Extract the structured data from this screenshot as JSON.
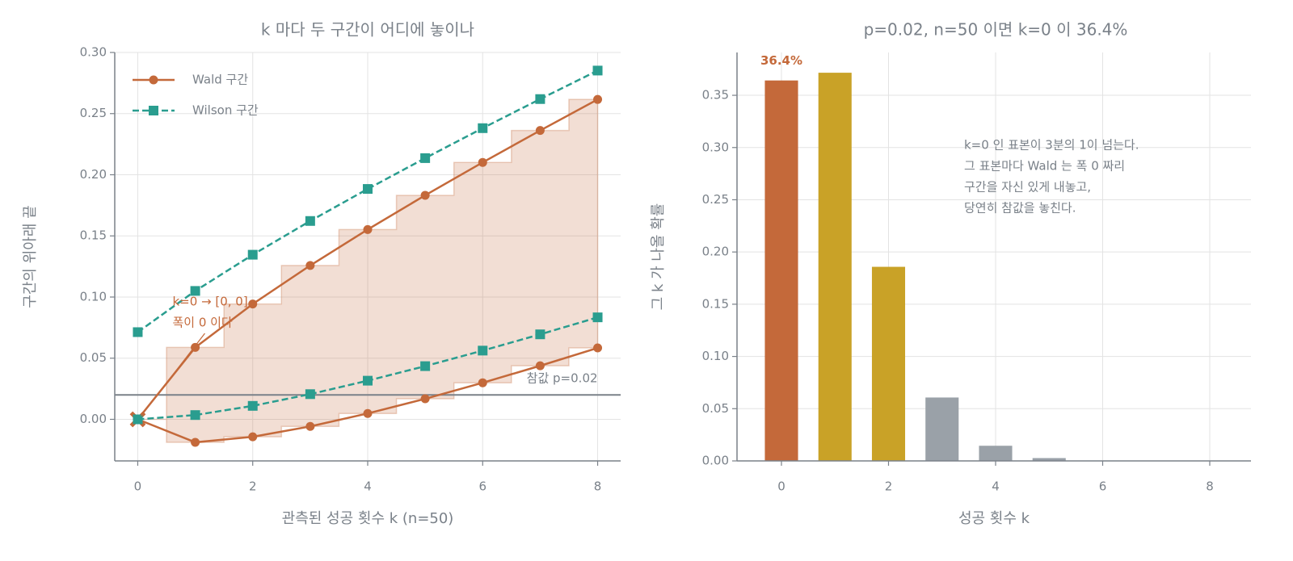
{
  "chart_data": [
    {
      "type": "line",
      "title": "k 마다 두 구간이 어디에 놓이나",
      "xlabel": "관측된 성공 횟수 k (n=50)",
      "ylabel": "구간의 위아래 끝",
      "x": [
        0,
        1,
        2,
        3,
        4,
        5,
        6,
        7,
        8
      ],
      "series": [
        {
          "name": "Wald 구간",
          "color": "#c4693a",
          "marker": "circle",
          "dashed": false,
          "upper": [
            0,
            0.0588,
            0.0943,
            0.1258,
            0.1552,
            0.1832,
            0.2101,
            0.2362,
            0.2616
          ],
          "lower": [
            0,
            -0.0188,
            -0.0143,
            -0.0058,
            0.0048,
            0.0168,
            0.0299,
            0.0438,
            0.0584
          ]
        },
        {
          "name": "Wilson 구간",
          "color": "#2a9d8f",
          "marker": "square",
          "dashed": true,
          "upper": [
            0.0713,
            0.105,
            0.1346,
            0.1622,
            0.1884,
            0.2136,
            0.2381,
            0.2619,
            0.2852
          ],
          "lower": [
            0,
            0.0035,
            0.011,
            0.0206,
            0.0316,
            0.0435,
            0.0562,
            0.0695,
            0.0834
          ]
        }
      ],
      "xlim": [
        -0.4,
        8.4
      ],
      "xticks": [
        0,
        2,
        4,
        6,
        8
      ],
      "ylim": [
        -0.034,
        0.3
      ],
      "yticks": [
        {
          "value": 0,
          "label": "0.00"
        },
        {
          "value": 0.05,
          "label": "0.05"
        },
        {
          "value": 0.1,
          "label": "0.10"
        },
        {
          "value": 0.15,
          "label": "0.15"
        },
        {
          "value": 0.2,
          "label": "0.20"
        },
        {
          "value": 0.25,
          "label": "0.25"
        },
        {
          "value": 0.3,
          "label": "0.30"
        }
      ],
      "grid": true,
      "legend": "upper left",
      "reference_line": {
        "value": 0.02,
        "label": "참값 p=0.02",
        "color": "#7a8189"
      },
      "annotation": [
        "k=0 → [0, 0]",
        "폭이 0 이다"
      ]
    },
    {
      "type": "bar",
      "title": "p=0.02, n=50 이면 k=0 이 36.4%",
      "xlabel": "성공 횟수 k",
      "ylabel": "그 k 가 나올 확률",
      "x": [
        0,
        1,
        2,
        3,
        4,
        5,
        6,
        7,
        8
      ],
      "values": [
        0.3642,
        0.3716,
        0.1858,
        0.0607,
        0.0145,
        0.0027,
        0.0004,
        5e-05,
        5e-06
      ],
      "value_labels": [
        "36.4%",
        null,
        null,
        null,
        null,
        null,
        null,
        null,
        null
      ],
      "colors": [
        "#c4693a",
        "#c9a227",
        "#c9a227",
        "#9aa1a8",
        "#9aa1a8",
        "#9aa1a8",
        "#9aa1a8",
        "#9aa1a8",
        "#9aa1a8"
      ],
      "xlim": [
        -0.83,
        8.77
      ],
      "xticks": [
        0,
        2,
        4,
        6,
        8
      ],
      "ylim": [
        0,
        0.391
      ],
      "yticks": [
        {
          "value": 0,
          "label": "0.00"
        },
        {
          "value": 0.05,
          "label": "0.05"
        },
        {
          "value": 0.1,
          "label": "0.10"
        },
        {
          "value": 0.15,
          "label": "0.15"
        },
        {
          "value": 0.2,
          "label": "0.20"
        },
        {
          "value": 0.25,
          "label": "0.25"
        },
        {
          "value": 0.3,
          "label": "0.30"
        },
        {
          "value": 0.35,
          "label": "0.35"
        }
      ],
      "grid": true,
      "annotation": [
        "k=0 인 표본이 3분의 1이 넘는다.",
        "그 표본마다 Wald 는 폭 0 짜리",
        "구간을 자신 있게 내놓고,",
        "당연히 참값을 놓친다."
      ]
    }
  ]
}
